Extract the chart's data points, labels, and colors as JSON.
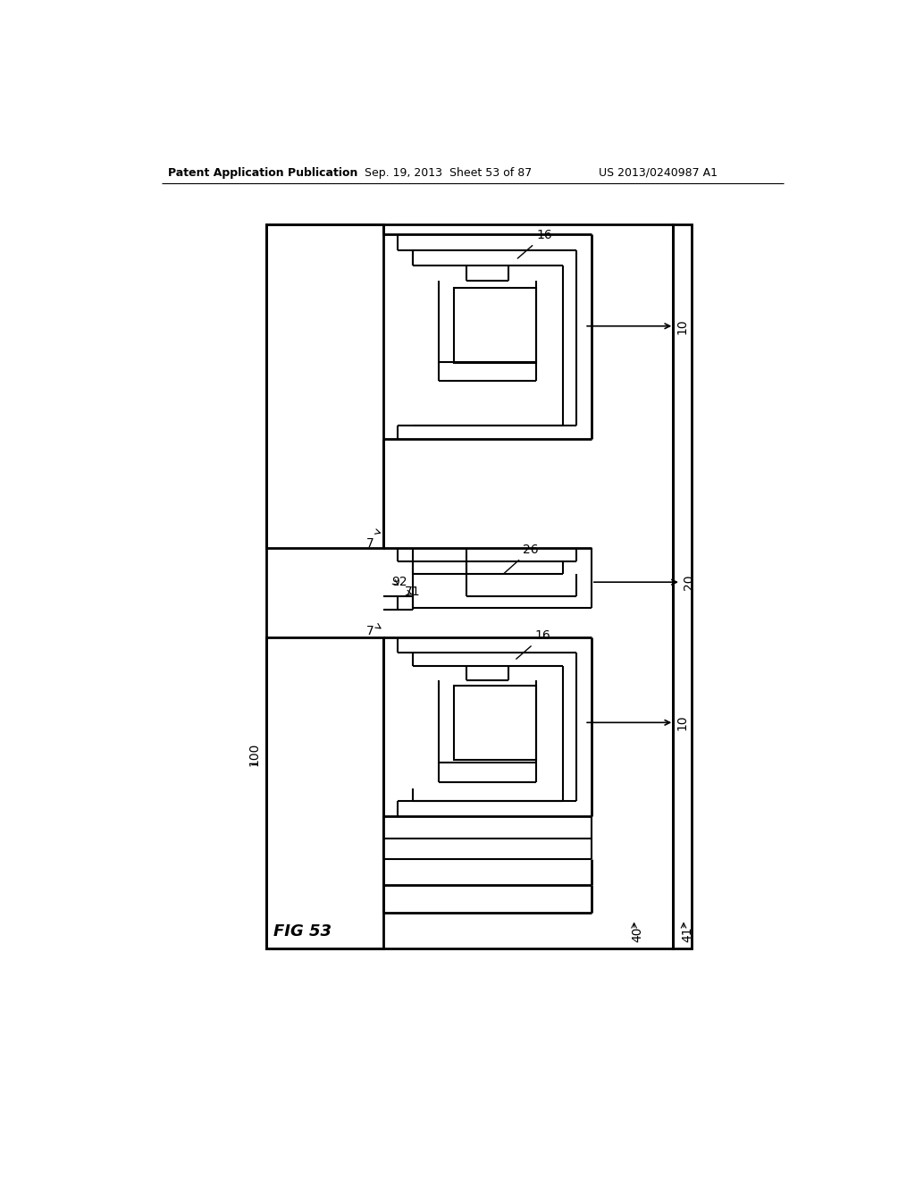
{
  "bg_color": "#ffffff",
  "line_color": "#000000",
  "header_text": "Patent Application Publication",
  "header_date": "Sep. 19, 2013  Sheet 53 of 87",
  "header_patent": "US 2013/0240987 A1",
  "fig_label": "FIG 53"
}
